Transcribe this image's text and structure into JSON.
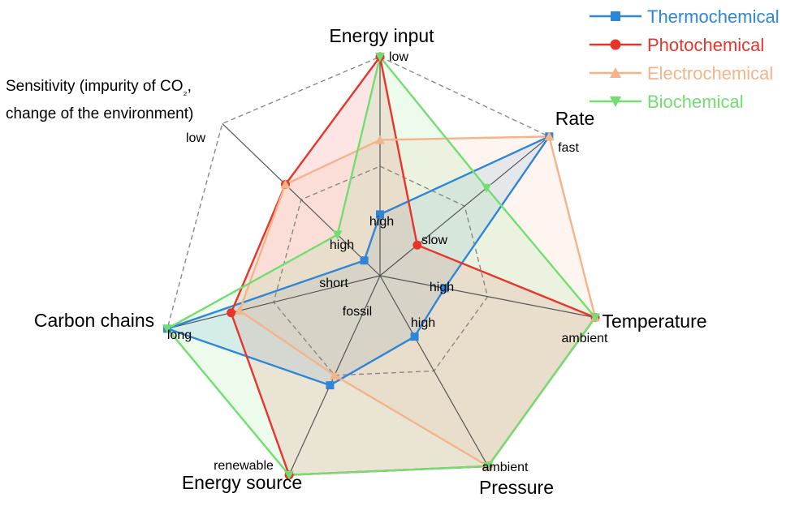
{
  "chart_data": {
    "type": "radar",
    "axes": [
      {
        "name": "Energy input",
        "outer_label": "low",
        "inner_label": "high"
      },
      {
        "name": "Rate",
        "outer_label": "fast",
        "inner_label": "slow"
      },
      {
        "name": "Temperature",
        "outer_label": "ambient",
        "inner_label": "high"
      },
      {
        "name": "Pressure",
        "outer_label": "ambient",
        "inner_label": "high"
      },
      {
        "name": "Energy source",
        "outer_label": "renewable",
        "inner_label": "fossil"
      },
      {
        "name": "Carbon chains",
        "outer_label": "long",
        "inner_label": "short"
      },
      {
        "name": "Sensitivity (impurity of CO₂, change of the environment)",
        "name_lines": [
          "Sensitivity (impurity of CO",
          "₂",
          ",",
          "change of the environment)"
        ],
        "outer_label": "low",
        "inner_label": "high"
      }
    ],
    "scale": {
      "min": 0,
      "max": 1,
      "grid_rings": [
        0.5,
        1.0
      ],
      "grid_style": "dashed"
    },
    "series": [
      {
        "name": "Thermochemical",
        "color": "#2f86d6",
        "marker": "square",
        "values": [
          0.28,
          1.0,
          0.3,
          0.32,
          0.55,
          1.0,
          0.1
        ]
      },
      {
        "name": "Photochemical",
        "color": "#e8352b",
        "marker": "circle",
        "values": [
          1.0,
          0.22,
          1.0,
          1.0,
          1.0,
          0.7,
          0.6
        ]
      },
      {
        "name": "Electrochemical",
        "color": "#f4b48a",
        "marker": "triangle-up",
        "values": [
          0.62,
          1.0,
          1.0,
          1.0,
          0.5,
          0.66,
          0.6
        ]
      },
      {
        "name": "Biochemical",
        "color": "#72de72",
        "marker": "triangle-down",
        "values": [
          1.0,
          0.63,
          1.0,
          1.0,
          1.0,
          1.0,
          0.27
        ]
      }
    ],
    "legend_position": "top-right"
  }
}
